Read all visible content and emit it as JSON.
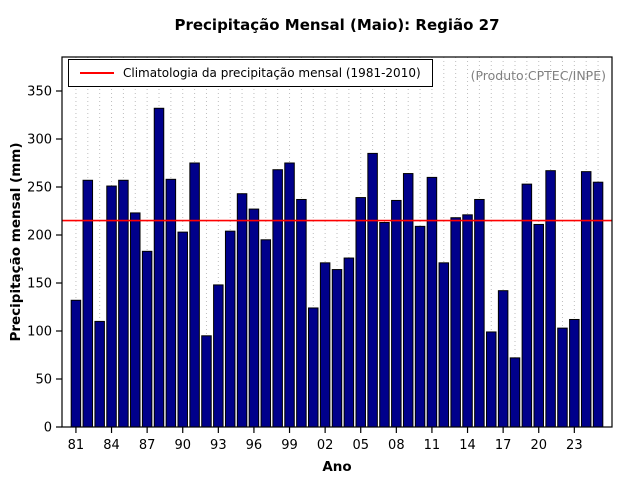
{
  "title": "Precipitação Mensal (Maio): Região 27",
  "legend": {
    "label": "Climatologia da precipitação mensal (1981-2010)"
  },
  "watermark": "(Produto:CPTEC/INPE)",
  "chart_data": {
    "type": "bar",
    "title": "Precipitação Mensal (Maio): Região 27",
    "xlabel": "Ano",
    "ylabel": "Precipitação mensal (mm)",
    "ylim": [
      0,
      350
    ],
    "yticks": [
      0,
      50,
      100,
      150,
      200,
      250,
      300,
      350
    ],
    "grid": true,
    "legend_position": "top-left",
    "categories": [
      "1981",
      "1982",
      "1983",
      "1984",
      "1985",
      "1986",
      "1987",
      "1988",
      "1989",
      "1990",
      "1991",
      "1992",
      "1993",
      "1994",
      "1995",
      "1996",
      "1997",
      "1998",
      "1999",
      "2000",
      "2001",
      "2002",
      "2003",
      "2004",
      "2005",
      "2006",
      "2007",
      "2008",
      "2009",
      "2010",
      "2011",
      "2012",
      "2013",
      "2014",
      "2015",
      "2016",
      "2017",
      "2018",
      "2019",
      "2020",
      "2021",
      "2022",
      "2023",
      "2024",
      "2025"
    ],
    "xtick_labels": [
      "81",
      "84",
      "87",
      "90",
      "93",
      "96",
      "99",
      "02",
      "05",
      "08",
      "11",
      "14",
      "17",
      "20",
      "23"
    ],
    "xtick_every": 3,
    "values": [
      132,
      257,
      110,
      251,
      257,
      223,
      183,
      332,
      258,
      203,
      275,
      95,
      148,
      204,
      243,
      227,
      195,
      268,
      275,
      237,
      124,
      171,
      164,
      176,
      239,
      285,
      213,
      236,
      264,
      209,
      260,
      171,
      218,
      221,
      237,
      99,
      142,
      72,
      253,
      211,
      267,
      103,
      112,
      266,
      255
    ],
    "climatology_line": 215,
    "bar_color": "#00008B",
    "bar_border_color": "#000000",
    "line_color": "#FF0000",
    "grid_color": "#BEBEBE"
  }
}
